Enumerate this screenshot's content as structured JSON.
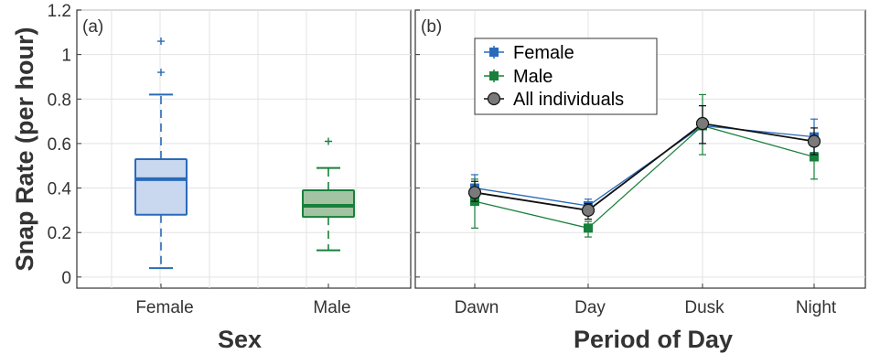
{
  "colors": {
    "female": "#2a6ab8",
    "female_fill": "#c9d7ef",
    "male": "#18803a",
    "male_fill": "#a3c4a3",
    "all": "#111111",
    "all_marker": "#7a7a7a"
  },
  "chart_data": [
    {
      "type": "box",
      "panel_label": "(a)",
      "xlabel": "Sex",
      "ylabel": "Snap Rate (per hour)",
      "ylim": [
        -0.05,
        1.2
      ],
      "yticks": [
        "0",
        "0.2",
        "0.4",
        "0.6",
        "0.8",
        "1",
        "1.2"
      ],
      "grid": true,
      "categories": [
        "Female",
        "Male"
      ],
      "boxes": [
        {
          "name": "Female",
          "whisker_low": 0.04,
          "q1": 0.28,
          "median": 0.44,
          "q3": 0.53,
          "whisker_high": 0.82,
          "outliers": [
            0.92,
            1.06
          ]
        },
        {
          "name": "Male",
          "whisker_low": 0.12,
          "q1": 0.27,
          "median": 0.32,
          "q3": 0.39,
          "whisker_high": 0.49,
          "outliers": [
            0.61
          ]
        }
      ]
    },
    {
      "type": "line",
      "panel_label": "(b)",
      "xlabel": "Period of Day",
      "ylim": [
        -0.05,
        1.2
      ],
      "grid": true,
      "legend_position": "top-left",
      "categories": [
        "Dawn",
        "Day",
        "Dusk",
        "Night"
      ],
      "series": [
        {
          "name": "Female",
          "marker": "square",
          "values": [
            0.4,
            0.32,
            0.68,
            0.63
          ],
          "err_low": [
            0.34,
            0.29,
            0.6,
            0.56
          ],
          "err_high": [
            0.46,
            0.35,
            0.77,
            0.71
          ]
        },
        {
          "name": "Male",
          "marker": "square",
          "values": [
            0.34,
            0.22,
            0.68,
            0.54
          ],
          "err_low": [
            0.22,
            0.18,
            0.55,
            0.44
          ],
          "err_high": [
            0.44,
            0.25,
            0.82,
            0.61
          ]
        },
        {
          "name": "All individuals",
          "marker": "circle",
          "values": [
            0.38,
            0.3,
            0.69,
            0.61
          ],
          "err_low": [
            0.34,
            0.26,
            0.6,
            0.55
          ],
          "err_high": [
            0.43,
            0.33,
            0.77,
            0.67
          ]
        }
      ]
    }
  ]
}
